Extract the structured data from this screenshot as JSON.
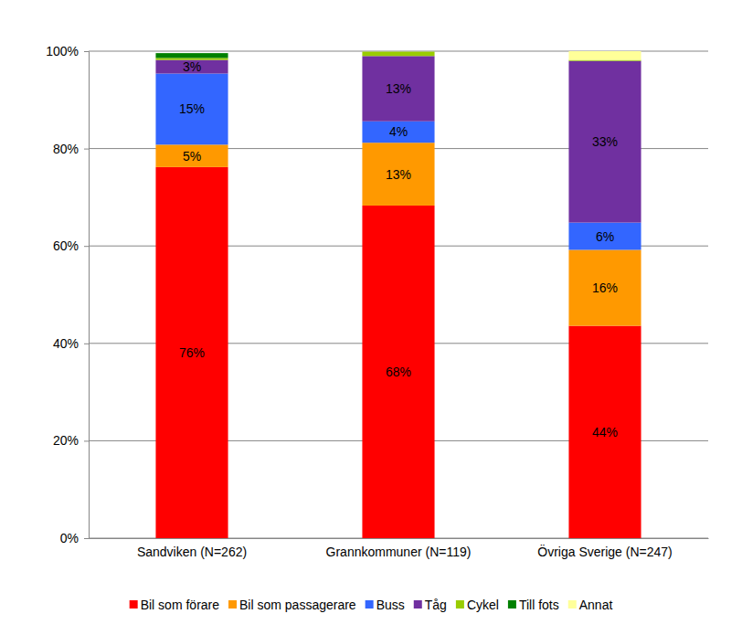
{
  "chart_data": {
    "type": "bar",
    "stacked": true,
    "grid": true,
    "legend": "bottom",
    "data_labels": true,
    "categories": [
      "Sandviken (N=262)",
      "Grannkommuner (N=119)",
      "Övriga Sverige (N=247)"
    ],
    "ylim": [
      0,
      100
    ],
    "yticks": [
      {
        "value": 0,
        "label": "0%"
      },
      {
        "value": 20,
        "label": "20%"
      },
      {
        "value": 40,
        "label": "40%"
      },
      {
        "value": 60,
        "label": "60%"
      },
      {
        "value": 80,
        "label": "80%"
      },
      {
        "value": 100,
        "label": "100%"
      }
    ],
    "series": [
      {
        "name": "Bil som förare",
        "color": "#ff0000",
        "values": [
          76.2,
          68.3,
          43.6
        ],
        "value_labels": [
          "76%",
          "68%",
          "44%"
        ]
      },
      {
        "name": "Bil som passagerare",
        "color": "#ff9900",
        "values": [
          4.6,
          12.9,
          15.6
        ],
        "value_labels": [
          "5%",
          "13%",
          "16%"
        ]
      },
      {
        "name": "Buss",
        "color": "#3366ff",
        "values": [
          14.6,
          4.4,
          5.6
        ],
        "value_labels": [
          "15%",
          "4%",
          "6%"
        ]
      },
      {
        "name": "Tåg",
        "color": "#7030a0",
        "values": [
          2.8,
          13.4,
          33.2
        ],
        "value_labels": [
          "3%",
          "13%",
          "33%"
        ]
      },
      {
        "name": "Cykel",
        "color": "#99cc00",
        "values": [
          0.4,
          0.9,
          0.2
        ],
        "value_labels": [
          null,
          null,
          null
        ]
      },
      {
        "name": "Till fots",
        "color": "#008000",
        "values": [
          1.0,
          0,
          0
        ],
        "value_labels": [
          null,
          null,
          null
        ]
      },
      {
        "name": "Annat",
        "color": "#ffff99",
        "values": [
          0,
          0,
          1.8
        ],
        "value_labels": [
          null,
          null,
          null
        ]
      }
    ]
  }
}
